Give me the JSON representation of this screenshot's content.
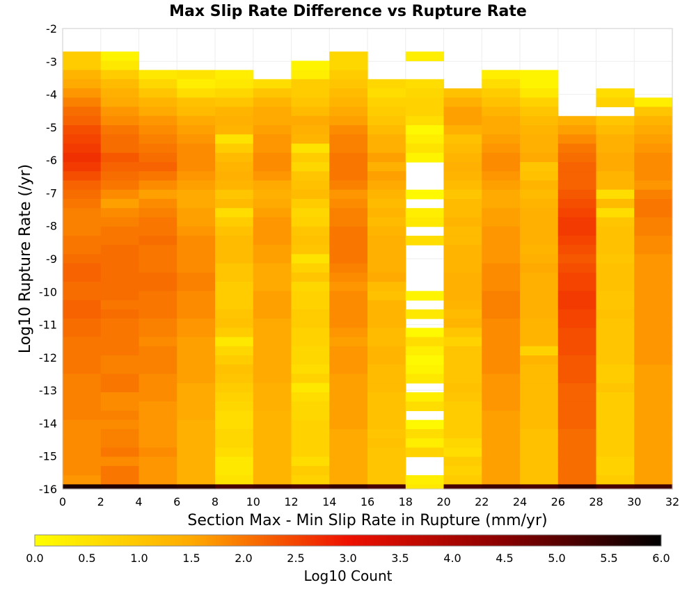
{
  "chart_data": {
    "type": "heatmap",
    "title": "Max Slip Rate Difference vs Rupture Rate",
    "xlabel": "Section Max - Min Slip Rate in Rupture (mm/yr)",
    "ylabel": "Log10 Rupture Rate (/yr)",
    "xlim": [
      0,
      32
    ],
    "ylim": [
      -16,
      -2
    ],
    "x_bin_width": 2,
    "y_bin_width": 0.28,
    "x_ticks": [
      "0",
      "2",
      "4",
      "6",
      "8",
      "10",
      "12",
      "14",
      "16",
      "18",
      "20",
      "22",
      "24",
      "26",
      "28",
      "30",
      "32"
    ],
    "y_ticks": [
      "-2",
      "-3",
      "-4",
      "-5",
      "-6",
      "-7",
      "-8",
      "-9",
      "-10",
      "-11",
      "-12",
      "-13",
      "-14",
      "-15",
      "-16"
    ],
    "x_bin_starts": [
      0,
      2,
      4,
      6,
      8,
      10,
      12,
      14,
      16,
      18,
      20,
      22,
      24,
      26,
      28,
      30
    ],
    "y_bin_tops": [
      -2.7,
      -2.98,
      -3.26,
      -3.54,
      -3.82,
      -4.1,
      -4.38,
      -4.66,
      -4.94,
      -5.22,
      -5.5,
      -5.78,
      -6.06,
      -6.34,
      -6.62,
      -6.9,
      -7.18,
      -7.46,
      -7.74,
      -8.02,
      -8.3,
      -8.58,
      -8.86,
      -9.14,
      -9.42,
      -9.7,
      -9.98,
      -10.26,
      -10.54,
      -10.82,
      -11.1,
      -11.38,
      -11.66,
      -11.94,
      -12.22,
      -12.5,
      -12.78,
      -13.06,
      -13.34,
      -13.62,
      -13.9,
      -14.18,
      -14.46,
      -14.74,
      -15.02,
      -15.3,
      -15.58,
      -15.86
    ],
    "columns": [
      [
        0.9,
        0.9,
        1.3,
        1.5,
        1.7,
        1.9,
        2.1,
        2.2,
        2.4,
        2.5,
        2.6,
        2.7,
        2.6,
        2.4,
        2.2,
        2.1,
        2.0,
        1.9,
        1.9,
        1.9,
        2.0,
        2.0,
        2.1,
        2.2,
        2.2,
        2.1,
        2.1,
        2.2,
        2.2,
        2.1,
        2.1,
        2.0,
        2.0,
        2.0,
        2.0,
        1.9,
        1.9,
        1.9,
        1.9,
        1.9,
        1.8,
        1.8,
        1.8,
        1.8,
        1.8,
        1.8,
        1.7,
        5.7
      ],
      [
        0.2,
        0.4,
        0.9,
        1.2,
        1.4,
        1.5,
        1.7,
        1.8,
        2.0,
        2.1,
        2.1,
        2.3,
        2.2,
        2.1,
        2.0,
        1.8,
        1.6,
        1.8,
        1.9,
        2.0,
        2.0,
        2.1,
        2.1,
        2.1,
        2.1,
        2.1,
        2.1,
        2.0,
        2.1,
        2.0,
        2.0,
        2.0,
        2.0,
        1.9,
        1.9,
        2.0,
        2.0,
        1.8,
        1.8,
        1.9,
        1.8,
        1.9,
        1.9,
        2.0,
        1.8,
        2.0,
        2.0,
        5.6
      ],
      [
        null,
        null,
        0.4,
        0.7,
        1.0,
        1.3,
        1.5,
        1.7,
        1.8,
        1.9,
        2.0,
        2.1,
        2.2,
        2.0,
        1.8,
        1.6,
        1.8,
        1.9,
        2.0,
        2.0,
        2.1,
        2.0,
        2.0,
        2.0,
        2.1,
        2.1,
        2.0,
        2.0,
        2.0,
        1.9,
        1.9,
        1.8,
        1.9,
        1.9,
        1.9,
        1.8,
        1.8,
        1.8,
        1.7,
        1.7,
        1.7,
        1.7,
        1.7,
        1.8,
        1.7,
        1.7,
        1.7,
        5.6
      ],
      [
        null,
        null,
        0.5,
        0.3,
        0.6,
        1.1,
        1.2,
        1.5,
        1.6,
        1.7,
        1.8,
        1.8,
        1.8,
        1.7,
        1.6,
        1.5,
        1.5,
        1.6,
        1.6,
        1.7,
        1.8,
        1.8,
        1.8,
        1.8,
        1.9,
        1.9,
        1.8,
        1.8,
        1.8,
        1.7,
        1.7,
        1.6,
        1.6,
        1.6,
        1.6,
        1.6,
        1.5,
        1.5,
        1.5,
        1.5,
        1.4,
        1.4,
        1.4,
        1.4,
        1.4,
        1.4,
        1.4,
        5.5
      ],
      [
        null,
        null,
        0.3,
        0.4,
        0.7,
        1.0,
        1.3,
        1.4,
        1.3,
        0.5,
        0.9,
        1.2,
        1.3,
        1.4,
        1.3,
        1.0,
        1.2,
        0.6,
        0.9,
        1.1,
        1.2,
        1.2,
        1.2,
        1.0,
        1.0,
        0.9,
        0.9,
        0.9,
        1.0,
        1.1,
        0.9,
        0.4,
        0.7,
        0.9,
        1.1,
        1.0,
        0.9,
        0.8,
        0.7,
        0.6,
        0.6,
        0.7,
        0.7,
        0.6,
        0.4,
        0.4,
        0.5,
        5.2
      ],
      [
        null,
        null,
        null,
        0.6,
        1.0,
        1.3,
        1.5,
        1.5,
        1.6,
        1.7,
        1.7,
        1.8,
        1.8,
        1.7,
        1.5,
        1.4,
        1.5,
        1.6,
        1.7,
        1.7,
        1.7,
        1.6,
        1.6,
        1.5,
        1.5,
        1.5,
        1.6,
        1.6,
        1.6,
        1.5,
        1.5,
        1.5,
        1.5,
        1.5,
        1.5,
        1.5,
        1.4,
        1.4,
        1.4,
        1.3,
        1.3,
        1.3,
        1.3,
        1.3,
        1.3,
        1.3,
        1.3,
        5.3
      ],
      [
        null,
        0.2,
        0.3,
        0.9,
        0.9,
        1.0,
        1.2,
        1.5,
        1.4,
        1.3,
        0.5,
        0.9,
        0.7,
        1.0,
        1.1,
        1.2,
        0.9,
        0.7,
        0.8,
        1.0,
        1.1,
        1.0,
        0.5,
        0.8,
        1.0,
        0.7,
        0.8,
        0.8,
        0.9,
        0.9,
        0.8,
        0.8,
        0.7,
        0.7,
        0.6,
        0.8,
        0.4,
        0.6,
        0.7,
        0.7,
        0.8,
        0.8,
        0.8,
        0.8,
        0.6,
        0.9,
        0.8,
        5.2
      ],
      [
        0.7,
        0.7,
        0.9,
        1.0,
        1.2,
        1.3,
        1.5,
        1.6,
        1.8,
        1.9,
        1.9,
        2.0,
        2.0,
        2.0,
        1.9,
        1.7,
        1.8,
        1.9,
        1.9,
        2.0,
        2.0,
        2.0,
        2.0,
        1.9,
        1.8,
        1.7,
        1.8,
        1.8,
        1.8,
        1.8,
        1.7,
        1.6,
        1.7,
        1.7,
        1.7,
        1.6,
        1.6,
        1.6,
        1.6,
        1.6,
        1.6,
        1.5,
        1.5,
        1.5,
        1.5,
        1.5,
        1.5,
        5.4
      ],
      [
        null,
        null,
        null,
        0.7,
        0.6,
        0.8,
        0.9,
        1.0,
        1.2,
        1.4,
        1.4,
        1.6,
        1.4,
        1.6,
        1.5,
        1.3,
        1.2,
        1.3,
        1.2,
        1.3,
        1.4,
        1.4,
        1.4,
        1.4,
        1.5,
        1.2,
        1.1,
        1.3,
        1.3,
        1.3,
        1.2,
        1.2,
        1.3,
        1.3,
        1.2,
        1.2,
        1.2,
        1.1,
        1.1,
        1.1,
        1.1,
        1.0,
        1.1,
        1.0,
        1.0,
        1.0,
        1.0,
        5.2
      ],
      [
        0.3,
        null,
        null,
        0.6,
        0.7,
        0.8,
        0.8,
        0.6,
        0.1,
        0.3,
        0.5,
        0.2,
        null,
        null,
        null,
        0.1,
        null,
        0.3,
        0.4,
        null,
        0.6,
        null,
        null,
        null,
        null,
        null,
        0.2,
        null,
        0.4,
        null,
        0.1,
        0.6,
        0.3,
        0.1,
        0.2,
        0.4,
        null,
        0.3,
        0.6,
        null,
        0.1,
        0.6,
        0.3,
        0.8,
        null,
        null,
        0.3,
        0.4
      ],
      [
        null,
        null,
        null,
        null,
        1.1,
        1.4,
        1.6,
        1.6,
        1.4,
        1.1,
        1.2,
        1.3,
        1.4,
        1.3,
        1.2,
        1.0,
        1.2,
        1.2,
        1.3,
        1.2,
        1.2,
        1.3,
        1.3,
        1.3,
        1.4,
        1.4,
        1.4,
        1.3,
        1.2,
        1.3,
        1.0,
        0.8,
        1.0,
        1.0,
        1.0,
        1.0,
        1.1,
        1.0,
        0.9,
        0.9,
        0.9,
        0.9,
        0.7,
        0.6,
        0.9,
        0.8,
        0.9,
        5.2
      ],
      [
        null,
        null,
        0.3,
        0.6,
        0.9,
        1.1,
        1.3,
        1.5,
        1.5,
        1.6,
        1.7,
        1.8,
        1.8,
        1.7,
        1.6,
        1.5,
        1.5,
        1.6,
        1.6,
        1.7,
        1.7,
        1.7,
        1.7,
        1.8,
        1.8,
        1.8,
        1.9,
        1.9,
        1.9,
        1.8,
        1.8,
        1.8,
        1.8,
        1.8,
        1.8,
        1.7,
        1.7,
        1.7,
        1.7,
        1.6,
        1.6,
        1.6,
        1.6,
        1.6,
        1.6,
        1.6,
        1.6,
        5.3
      ],
      [
        null,
        null,
        0.2,
        0.2,
        0.4,
        0.8,
        1.0,
        1.2,
        1.3,
        1.4,
        1.4,
        1.5,
        1.0,
        1.1,
        1.3,
        1.2,
        1.3,
        1.4,
        1.4,
        1.4,
        1.4,
        1.3,
        1.4,
        1.5,
        1.4,
        1.4,
        1.4,
        1.4,
        1.4,
        1.3,
        1.3,
        1.3,
        0.8,
        1.3,
        1.2,
        1.2,
        1.2,
        1.2,
        1.2,
        1.2,
        1.2,
        1.1,
        1.1,
        1.1,
        1.1,
        1.1,
        1.1,
        5.2
      ],
      [
        null,
        null,
        null,
        null,
        null,
        null,
        null,
        1.4,
        1.6,
        1.8,
        2.0,
        2.1,
        2.2,
        2.2,
        2.2,
        2.3,
        2.4,
        2.5,
        2.6,
        2.6,
        2.5,
        2.4,
        2.3,
        2.4,
        2.5,
        2.5,
        2.6,
        2.6,
        2.5,
        2.5,
        2.4,
        2.4,
        2.4,
        2.3,
        2.3,
        2.3,
        2.2,
        2.2,
        2.2,
        2.2,
        2.2,
        2.1,
        2.1,
        2.1,
        2.1,
        2.1,
        2.1,
        5.5
      ],
      [
        null,
        null,
        null,
        null,
        0.6,
        0.8,
        null,
        1.0,
        1.2,
        1.4,
        1.4,
        1.5,
        1.5,
        1.3,
        1.3,
        0.6,
        1.2,
        0.6,
        1.0,
        1.1,
        1.1,
        1.1,
        1.0,
        1.1,
        1.1,
        1.1,
        1.0,
        1.0,
        1.1,
        1.0,
        1.0,
        1.0,
        1.0,
        1.0,
        0.9,
        0.9,
        1.0,
        0.9,
        0.9,
        0.9,
        0.9,
        0.9,
        0.9,
        0.9,
        0.8,
        0.8,
        0.9,
        5.2
      ],
      [
        null,
        null,
        null,
        null,
        null,
        0.3,
        1.0,
        1.3,
        1.5,
        1.6,
        1.7,
        1.8,
        1.8,
        1.8,
        1.7,
        1.9,
        2.0,
        2.0,
        1.9,
        1.9,
        1.8,
        1.8,
        1.7,
        1.7,
        1.7,
        1.7,
        1.7,
        1.7,
        1.7,
        1.7,
        1.7,
        1.7,
        1.7,
        1.7,
        1.6,
        1.6,
        1.6,
        1.6,
        1.6,
        1.6,
        1.6,
        1.6,
        1.6,
        1.6,
        1.6,
        1.6,
        1.6,
        5.3
      ]
    ],
    "colorbar": {
      "label": "Log10 Count",
      "range": [
        0.0,
        6.0
      ],
      "ticks": [
        "0.0",
        "0.5",
        "1.0",
        "1.5",
        "2.0",
        "2.5",
        "3.0",
        "3.5",
        "4.0",
        "4.5",
        "5.0",
        "5.5",
        "6.0"
      ],
      "stops": [
        {
          "v": 0.0,
          "color": "#ffff00"
        },
        {
          "v": 1.5,
          "color": "#ffaa00"
        },
        {
          "v": 3.0,
          "color": "#ee1100"
        },
        {
          "v": 4.5,
          "color": "#880000"
        },
        {
          "v": 6.0,
          "color": "#000000"
        }
      ]
    },
    "grid": true
  }
}
